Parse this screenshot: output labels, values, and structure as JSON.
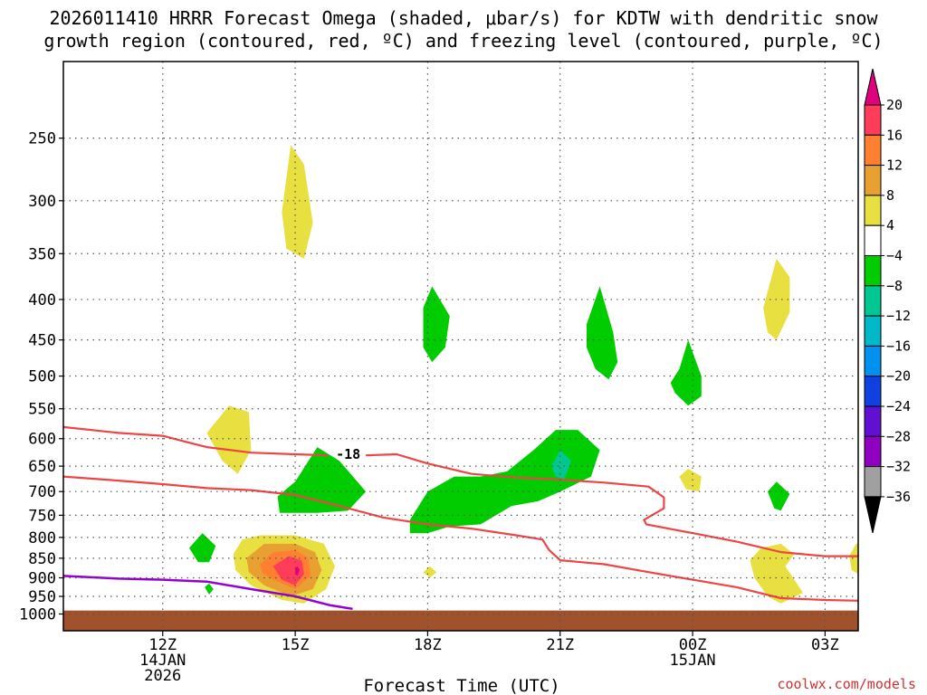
{
  "chart_data": {
    "type": "contour",
    "title_lines": [
      "2026011410 HRRR Forecast Omega (shaded, μbar/s) for KDTW with dendritic snow",
      "growth region (contoured, red, ºC) and freezing level (contoured, purple, ºC)"
    ],
    "xlabel": "Forecast Time (UTC)",
    "ylabel": "",
    "credit": "coolwx.com/models",
    "x_range_hours": [
      9.75,
      27.75
    ],
    "x_ticks": [
      {
        "hour": 12,
        "lines": [
          "12Z",
          "14JAN",
          "2026"
        ]
      },
      {
        "hour": 15,
        "lines": [
          "15Z"
        ]
      },
      {
        "hour": 18,
        "lines": [
          "18Z"
        ]
      },
      {
        "hour": 21,
        "lines": [
          "21Z"
        ]
      },
      {
        "hour": 24,
        "lines": [
          "00Z",
          "15JAN"
        ]
      },
      {
        "hour": 27,
        "lines": [
          "03Z"
        ]
      }
    ],
    "y_axis": "pressure_hPa_log",
    "y_range_hPa": [
      200,
      1050
    ],
    "y_ticks": [
      "250",
      "300",
      "350",
      "400",
      "450",
      "500",
      "550",
      "600",
      "650",
      "700",
      "750",
      "800",
      "850",
      "900",
      "950",
      "1000"
    ],
    "grid": true,
    "colorbar": {
      "labels": [
        "20",
        "16",
        "12",
        "8",
        "4",
        "−4",
        "−8",
        "−12",
        "−16",
        "−20",
        "−24",
        "−28",
        "−32",
        "−36"
      ],
      "colors": [
        "#ff3c5a",
        "#ff8030",
        "#e8a030",
        "#e8e040",
        "#ffffff",
        "#00cc00",
        "#00c890",
        "#00b8c8",
        "#0090f0",
        "#1040e0",
        "#6010d0",
        "#9000c0",
        "#a0a0a0"
      ],
      "overflow_top_color": "#e0007c",
      "overflow_bottom_color": "#000000"
    },
    "contour_label": "-18",
    "omega_regions": [
      {
        "color": "#e8e040",
        "points": [
          [
            14.7,
            310
          ],
          [
            14.9,
            255
          ],
          [
            15.2,
            270
          ],
          [
            15.4,
            320
          ],
          [
            15.2,
            355
          ],
          [
            14.8,
            345
          ]
        ]
      },
      {
        "color": "#e8e040",
        "points": [
          [
            13.0,
            590
          ],
          [
            13.5,
            545
          ],
          [
            13.95,
            555
          ],
          [
            14.0,
            620
          ],
          [
            13.7,
            665
          ],
          [
            13.35,
            640
          ]
        ]
      },
      {
        "color": "#e8e040",
        "points": [
          [
            13.6,
            840
          ],
          [
            13.8,
            805
          ],
          [
            14.2,
            795
          ],
          [
            15.0,
            795
          ],
          [
            15.65,
            815
          ],
          [
            15.9,
            870
          ],
          [
            15.7,
            930
          ],
          [
            15.2,
            970
          ],
          [
            14.7,
            960
          ],
          [
            14.0,
            920
          ],
          [
            13.65,
            880
          ]
        ]
      },
      {
        "color": "#e8a030",
        "points": [
          [
            13.9,
            850
          ],
          [
            14.3,
            815
          ],
          [
            15.0,
            815
          ],
          [
            15.45,
            835
          ],
          [
            15.6,
            880
          ],
          [
            15.4,
            930
          ],
          [
            14.9,
            950
          ],
          [
            14.3,
            920
          ],
          [
            13.95,
            885
          ]
        ]
      },
      {
        "color": "#ff8030",
        "points": [
          [
            14.2,
            865
          ],
          [
            14.5,
            835
          ],
          [
            15.0,
            830
          ],
          [
            15.3,
            850
          ],
          [
            15.35,
            895
          ],
          [
            15.0,
            930
          ],
          [
            14.6,
            910
          ],
          [
            14.25,
            888
          ]
        ]
      },
      {
        "color": "#ff3c5a",
        "points": [
          [
            14.5,
            870
          ],
          [
            14.85,
            845
          ],
          [
            15.15,
            855
          ],
          [
            15.2,
            890
          ],
          [
            15.0,
            920
          ],
          [
            14.7,
            905
          ]
        ]
      },
      {
        "color": "#e0007c",
        "points": [
          [
            15.0,
            875
          ],
          [
            15.05,
            870
          ],
          [
            15.1,
            880
          ],
          [
            15.05,
            895
          ],
          [
            15.0,
            890
          ]
        ]
      },
      {
        "color": "#e8e040",
        "points": [
          [
            17.9,
            885
          ],
          [
            18.05,
            870
          ],
          [
            18.2,
            885
          ],
          [
            18.05,
            900
          ]
        ]
      },
      {
        "color": "#e8e040",
        "points": [
          [
            23.7,
            670
          ],
          [
            23.9,
            655
          ],
          [
            24.2,
            670
          ],
          [
            24.15,
            700
          ],
          [
            23.85,
            695
          ]
        ]
      },
      {
        "color": "#e8e040",
        "points": [
          [
            25.3,
            855
          ],
          [
            25.55,
            825
          ],
          [
            26.0,
            815
          ],
          [
            26.3,
            840
          ],
          [
            26.1,
            870
          ],
          [
            26.5,
            940
          ],
          [
            26.0,
            970
          ],
          [
            25.7,
            950
          ],
          [
            25.4,
            900
          ]
        ]
      },
      {
        "color": "#e8e040",
        "points": [
          [
            25.6,
            410
          ],
          [
            25.9,
            355
          ],
          [
            26.2,
            375
          ],
          [
            26.2,
            415
          ],
          [
            25.9,
            450
          ],
          [
            25.7,
            440
          ]
        ]
      },
      {
        "color": "#e8e040",
        "points": [
          [
            27.55,
            845
          ],
          [
            27.7,
            815
          ],
          [
            27.75,
            815
          ],
          [
            27.75,
            890
          ],
          [
            27.6,
            880
          ]
        ]
      },
      {
        "color": "#00cc00",
        "points": [
          [
            12.6,
            825
          ],
          [
            12.9,
            790
          ],
          [
            13.2,
            820
          ],
          [
            13.05,
            860
          ],
          [
            12.8,
            860
          ]
        ]
      },
      {
        "color": "#00cc00",
        "points": [
          [
            12.95,
            925
          ],
          [
            13.05,
            915
          ],
          [
            13.15,
            930
          ],
          [
            13.05,
            945
          ]
        ]
      },
      {
        "color": "#00cc00",
        "points": [
          [
            15.0,
            680
          ],
          [
            15.5,
            615
          ],
          [
            16.0,
            640
          ],
          [
            16.6,
            700
          ],
          [
            16.2,
            740
          ],
          [
            15.5,
            745
          ],
          [
            14.65,
            745
          ],
          [
            14.6,
            710
          ]
        ]
      },
      {
        "color": "#00cc00",
        "points": [
          [
            17.9,
            410
          ],
          [
            18.1,
            385
          ],
          [
            18.5,
            420
          ],
          [
            18.4,
            460
          ],
          [
            18.1,
            480
          ],
          [
            17.9,
            460
          ]
        ]
      },
      {
        "color": "#00cc00",
        "points": [
          [
            17.6,
            760
          ],
          [
            18.0,
            700
          ],
          [
            18.6,
            670
          ],
          [
            19.2,
            670
          ],
          [
            19.8,
            660
          ],
          [
            20.4,
            620
          ],
          [
            20.9,
            585
          ],
          [
            21.4,
            585
          ],
          [
            21.9,
            620
          ],
          [
            21.7,
            670
          ],
          [
            21.0,
            700
          ],
          [
            20.5,
            720
          ],
          [
            19.9,
            730
          ],
          [
            19.2,
            770
          ],
          [
            18.5,
            775
          ],
          [
            18.0,
            790
          ],
          [
            17.6,
            790
          ]
        ]
      },
      {
        "color": "#00c890",
        "points": [
          [
            20.8,
            650
          ],
          [
            21.0,
            620
          ],
          [
            21.25,
            640
          ],
          [
            21.1,
            675
          ],
          [
            20.9,
            670
          ]
        ]
      },
      {
        "color": "#00cc00",
        "points": [
          [
            21.6,
            430
          ],
          [
            21.9,
            385
          ],
          [
            22.2,
            440
          ],
          [
            22.3,
            480
          ],
          [
            22.1,
            505
          ],
          [
            21.8,
            490
          ],
          [
            21.6,
            460
          ]
        ]
      },
      {
        "color": "#00cc00",
        "points": [
          [
            23.5,
            510
          ],
          [
            23.7,
            490
          ],
          [
            23.9,
            450
          ],
          [
            24.2,
            500
          ],
          [
            24.2,
            530
          ],
          [
            23.9,
            545
          ],
          [
            23.6,
            525
          ]
        ]
      },
      {
        "color": "#00cc00",
        "points": [
          [
            25.7,
            700
          ],
          [
            25.9,
            680
          ],
          [
            26.2,
            705
          ],
          [
            26.0,
            740
          ],
          [
            25.85,
            735
          ]
        ]
      }
    ],
    "dgz_contours": [
      {
        "color": "#ee4444",
        "points": [
          [
            9.75,
            580
          ],
          [
            11.0,
            590
          ],
          [
            12.0,
            595
          ],
          [
            12.5,
            605
          ],
          [
            13.0,
            615
          ],
          [
            14.0,
            625
          ],
          [
            15.0,
            628
          ],
          [
            15.75,
            630
          ]
        ]
      },
      {
        "color": "#ee4444",
        "points": [
          [
            16.6,
            630
          ],
          [
            17.3,
            628
          ],
          [
            18.0,
            645
          ],
          [
            19.0,
            665
          ],
          [
            20.0,
            672
          ],
          [
            21.0,
            676
          ],
          [
            22.0,
            682
          ],
          [
            23.0,
            690
          ],
          [
            23.35,
            712
          ],
          [
            23.35,
            735
          ],
          [
            22.9,
            760
          ],
          [
            22.95,
            770
          ],
          [
            24.0,
            790
          ],
          [
            25.0,
            810
          ],
          [
            26.0,
            835
          ],
          [
            26.5,
            840
          ],
          [
            27.0,
            845
          ],
          [
            27.75,
            845
          ]
        ]
      },
      {
        "color": "#ee4444",
        "points": [
          [
            9.75,
            670
          ],
          [
            11.0,
            678
          ],
          [
            12.0,
            685
          ],
          [
            13.0,
            693
          ],
          [
            14.0,
            697
          ],
          [
            15.0,
            707
          ],
          [
            16.0,
            730
          ],
          [
            17.0,
            755
          ],
          [
            18.0,
            770
          ],
          [
            19.0,
            780
          ],
          [
            20.0,
            795
          ],
          [
            20.6,
            805
          ],
          [
            20.75,
            830
          ],
          [
            21.0,
            855
          ],
          [
            22.0,
            865
          ],
          [
            23.0,
            885
          ],
          [
            24.0,
            905
          ],
          [
            25.0,
            925
          ],
          [
            26.0,
            955
          ],
          [
            27.0,
            960
          ],
          [
            27.75,
            962
          ]
        ]
      }
    ],
    "freezing_contour": {
      "color": "#9400d3",
      "points": [
        [
          9.75,
          895
        ],
        [
          11.0,
          902
        ],
        [
          12.0,
          905
        ],
        [
          13.0,
          910
        ],
        [
          14.0,
          930
        ],
        [
          15.0,
          950
        ],
        [
          15.8,
          975
        ],
        [
          16.3,
          985
        ]
      ]
    },
    "ground_color": "#a0522d",
    "ground_top_hPa": 990
  }
}
